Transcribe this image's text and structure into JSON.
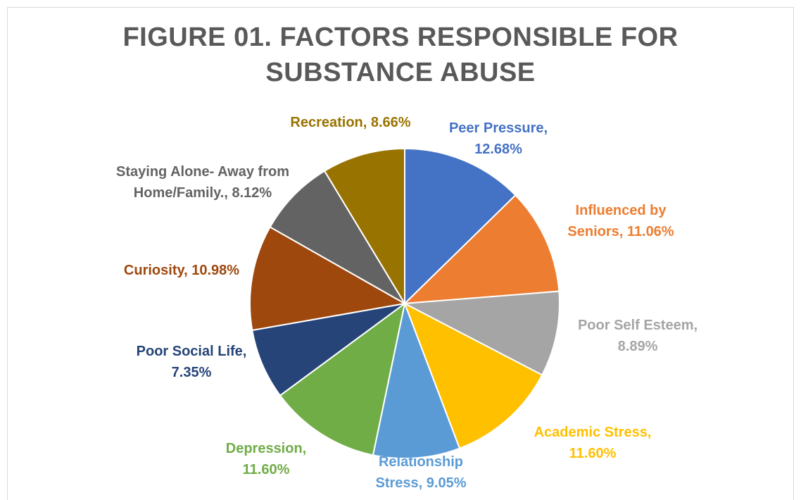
{
  "chart_data": {
    "type": "pie",
    "title_lines": [
      "FIGURE 01. FACTORS RESPONSIBLE FOR",
      "SUBSTANCE ABUSE"
    ],
    "slices": [
      {
        "label_lines": [
          "Peer Pressure,",
          "12.68%"
        ],
        "value": 12.68,
        "color": "#4472c4"
      },
      {
        "label_lines": [
          "Influenced by",
          "Seniors, 11.06%"
        ],
        "value": 11.06,
        "color": "#ed7d31"
      },
      {
        "label_lines": [
          "Poor Self Esteem,",
          "8.89%"
        ],
        "value": 8.89,
        "color": "#a5a5a5"
      },
      {
        "label_lines": [
          "Academic Stress,",
          "11.60%"
        ],
        "value": 11.6,
        "color": "#ffc000"
      },
      {
        "label_lines": [
          "Relationship",
          "Stress, 9.05%"
        ],
        "value": 9.05,
        "color": "#5b9bd5"
      },
      {
        "label_lines": [
          "Depression,",
          "11.60%"
        ],
        "value": 11.6,
        "color": "#70ad47"
      },
      {
        "label_lines": [
          "Poor Social Life,",
          "7.35%"
        ],
        "value": 7.35,
        "color": "#264478"
      },
      {
        "label_lines": [
          "Curiosity, 10.98%"
        ],
        "value": 10.98,
        "color": "#9e480e"
      },
      {
        "label_lines": [
          "Staying Alone- Away from",
          "Home/Family., 8.12%"
        ],
        "value": 8.12,
        "color": "#636363"
      },
      {
        "label_lines": [
          "Recreation, 8.66%"
        ],
        "value": 8.66,
        "color": "#997300"
      }
    ]
  }
}
